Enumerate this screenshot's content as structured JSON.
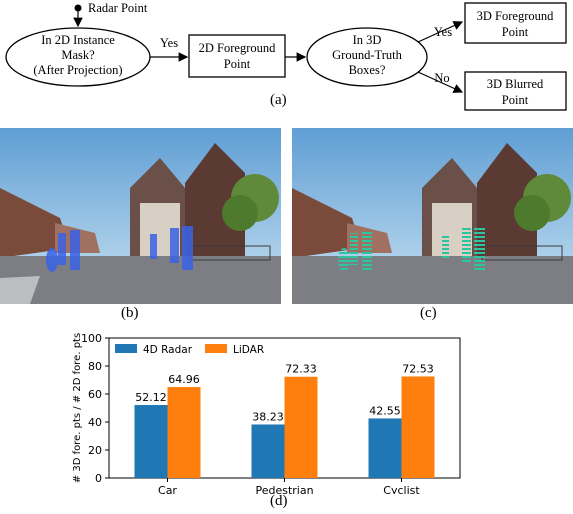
{
  "flowchart": {
    "start_label": "Radar Point",
    "decision1": [
      "In 2D Instance",
      "Mask?",
      "(After Projection)"
    ],
    "edge1": "Yes",
    "box1": [
      "2D Foreground",
      "Point"
    ],
    "decision2": [
      "In 3D",
      "Ground-Truth",
      "Boxes?"
    ],
    "edge_yes": "Yes",
    "edge_no": "No",
    "box_yes": [
      "3D Foreground",
      "Point"
    ],
    "box_no": [
      "3D Blurred",
      "Point"
    ]
  },
  "labels": {
    "a": "(a)",
    "b": "(b)",
    "c": "(c)",
    "d": "(d)"
  },
  "photos": {
    "b": {
      "overlay_color": "#3a63e6",
      "overlay_style": "solid"
    },
    "c": {
      "overlay_color": "#2ec4a0",
      "overlay_style": "striped"
    }
  },
  "chart_data": {
    "type": "bar",
    "categories": [
      "Car",
      "Pedestrian",
      "Cyclist"
    ],
    "series": [
      {
        "name": "4D Radar",
        "values": [
          52.12,
          38.23,
          42.55
        ],
        "color": "#1f77b4"
      },
      {
        "name": "LiDAR",
        "values": [
          64.96,
          72.33,
          72.53
        ],
        "color": "#ff7f0e"
      }
    ],
    "value_labels": [
      [
        "52.12",
        "38.23",
        "42.55"
      ],
      [
        "64.96",
        "72.33",
        "72.53"
      ]
    ],
    "ylabel": "# 3D fore. pts / # 2D fore. pts",
    "ylim": [
      0,
      100
    ],
    "yticks": [
      "0",
      "20",
      "40",
      "60",
      "80",
      "100"
    ],
    "legend": "top-left"
  }
}
